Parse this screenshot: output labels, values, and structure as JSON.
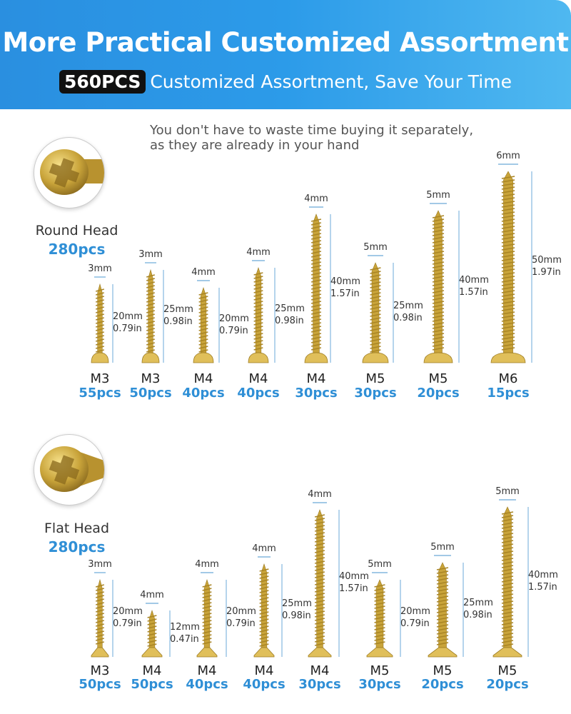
{
  "banner": {
    "title": "More Practical Customized Assortment",
    "badge": "560PCS",
    "subtitle": "Customized Assortment, Save Your Time"
  },
  "tagline": {
    "line1": "You don't have to waste time buying it separately,",
    "line2": "as they are already in your hand"
  },
  "colors": {
    "accent": "#2f8fd6",
    "banner": "#2a8fe0",
    "screw_gold": "#c9a43a"
  },
  "round": {
    "label": "Round Head",
    "count": "280pcs",
    "screws": [
      {
        "size": "M3",
        "pcs": "55pcs",
        "width": "3mm",
        "length": "20mm",
        "inch": "0.79in"
      },
      {
        "size": "M3",
        "pcs": "50pcs",
        "width": "3mm",
        "length": "25mm",
        "inch": "0.98in"
      },
      {
        "size": "M4",
        "pcs": "40pcs",
        "width": "4mm",
        "length": "20mm",
        "inch": "0.79in"
      },
      {
        "size": "M4",
        "pcs": "40pcs",
        "width": "4mm",
        "length": "25mm",
        "inch": "0.98in"
      },
      {
        "size": "M4",
        "pcs": "30pcs",
        "width": "4mm",
        "length": "40mm",
        "inch": "1.57in"
      },
      {
        "size": "M5",
        "pcs": "30pcs",
        "width": "5mm",
        "length": "25mm",
        "inch": "0.98in"
      },
      {
        "size": "M5",
        "pcs": "20pcs",
        "width": "5mm",
        "length": "40mm",
        "inch": "1.57in"
      },
      {
        "size": "M6",
        "pcs": "15pcs",
        "width": "6mm",
        "length": "50mm",
        "inch": "1.97in"
      }
    ]
  },
  "flat": {
    "label": "Flat Head",
    "count": "280pcs",
    "screws": [
      {
        "size": "M3",
        "pcs": "50pcs",
        "width": "3mm",
        "length": "20mm",
        "inch": "0.79in"
      },
      {
        "size": "M4",
        "pcs": "50pcs",
        "width": "4mm",
        "length": "12mm",
        "inch": "0.47in"
      },
      {
        "size": "M4",
        "pcs": "40pcs",
        "width": "4mm",
        "length": "20mm",
        "inch": "0.79in"
      },
      {
        "size": "M4",
        "pcs": "40pcs",
        "width": "4mm",
        "length": "25mm",
        "inch": "0.98in"
      },
      {
        "size": "M4",
        "pcs": "30pcs",
        "width": "4mm",
        "length": "40mm",
        "inch": "1.57in"
      },
      {
        "size": "M5",
        "pcs": "30pcs",
        "width": "5mm",
        "length": "20mm",
        "inch": "0.79in"
      },
      {
        "size": "M5",
        "pcs": "20pcs",
        "width": "5mm",
        "length": "25mm",
        "inch": "0.98in"
      },
      {
        "size": "M5",
        "pcs": "20pcs",
        "width": "5mm",
        "length": "40mm",
        "inch": "1.57in"
      }
    ]
  }
}
